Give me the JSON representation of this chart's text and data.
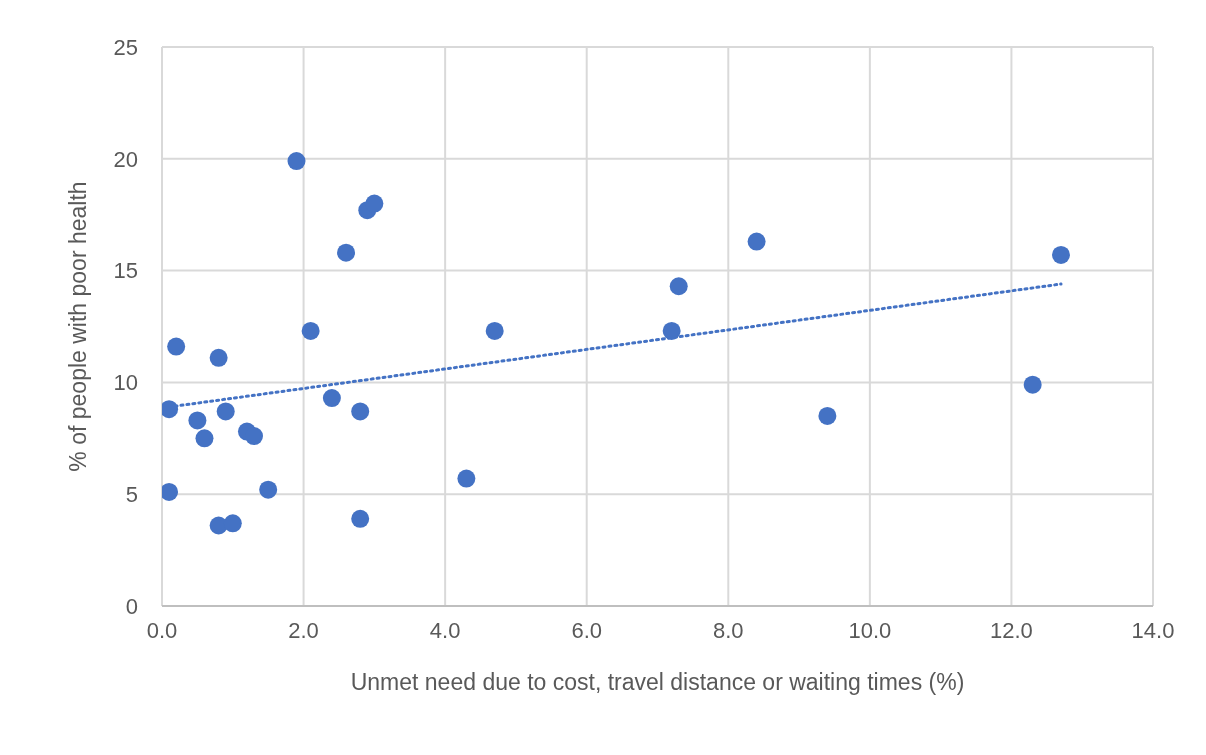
{
  "chart_data": {
    "type": "scatter",
    "xlabel": "Unmet need due to cost, travel distance or waiting times (%)",
    "ylabel": "% of people with poor health",
    "series": [
      {
        "color": "#4472c4",
        "x": [
          0.1,
          0.2,
          0.1,
          0.5,
          0.6,
          0.8,
          0.9,
          0.8,
          1.0,
          1.2,
          1.3,
          1.5,
          1.9,
          2.1,
          2.4,
          2.6,
          2.8,
          2.8,
          2.9,
          3.0,
          4.3,
          4.7,
          7.2,
          7.3,
          8.4,
          9.4,
          12.3,
          12.7
        ],
        "values": [
          8.8,
          11.6,
          5.1,
          8.3,
          7.5,
          11.1,
          8.7,
          3.6,
          3.7,
          7.8,
          7.6,
          5.2,
          19.9,
          12.3,
          9.3,
          15.8,
          8.7,
          3.9,
          17.7,
          18.0,
          5.7,
          12.3,
          12.3,
          14.3,
          16.3,
          8.5,
          9.9,
          15.7
        ]
      },
      {
        "type": "line",
        "color": "#4472c4",
        "line_style": "dotted",
        "marker": "none",
        "x": [
          0.1,
          12.7
        ],
        "values": [
          8.9,
          14.4
        ]
      }
    ],
    "marker": "circle",
    "xlim": [
      0,
      14
    ],
    "ylim": [
      0,
      25
    ],
    "xticks": [
      {
        "value": 0,
        "label": "0.0"
      },
      {
        "value": 2,
        "label": "2.0"
      },
      {
        "value": 4,
        "label": "4.0"
      },
      {
        "value": 6,
        "label": "6.0"
      },
      {
        "value": 8,
        "label": "8.0"
      },
      {
        "value": 10,
        "label": "10.0"
      },
      {
        "value": 12,
        "label": "12.0"
      },
      {
        "value": 14,
        "label": "14.0"
      }
    ],
    "yticks": [
      0,
      5,
      10,
      15,
      20,
      25
    ],
    "grid": true,
    "legend": false
  }
}
